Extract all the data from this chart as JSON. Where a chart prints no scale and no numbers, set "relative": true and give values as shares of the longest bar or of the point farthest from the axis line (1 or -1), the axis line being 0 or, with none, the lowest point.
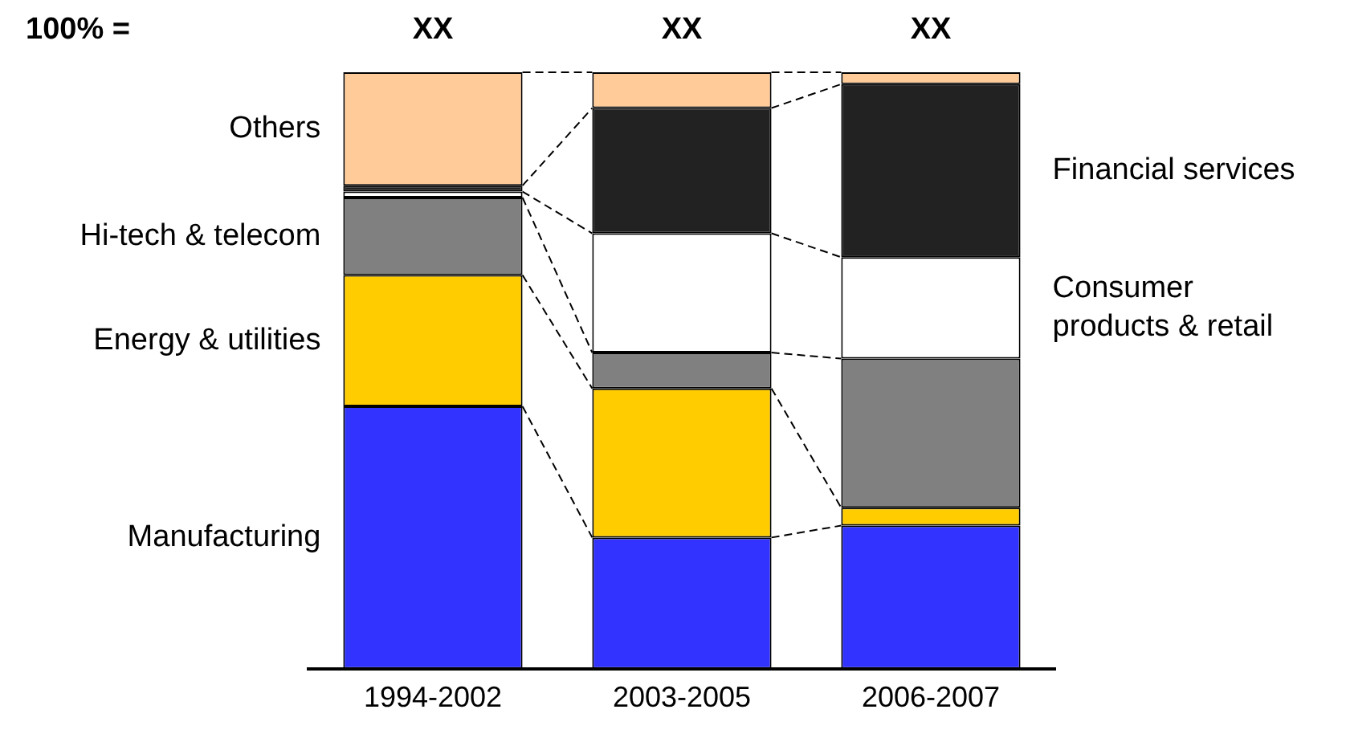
{
  "chart_data": {
    "type": "bar",
    "stacked": true,
    "relative": true,
    "categories": [
      "1994-2002",
      "2003-2005",
      "2006-2007"
    ],
    "series": [
      {
        "name": "Manufacturing",
        "color": "#3333ff",
        "values": [
          0.44,
          0.22,
          0.24
        ]
      },
      {
        "name": "Energy & utilities",
        "color": "#ffcc00",
        "values": [
          0.22,
          0.25,
          0.03
        ]
      },
      {
        "name": "Hi-tech & telecom",
        "color": "#808080",
        "values": [
          0.13,
          0.06,
          0.25
        ]
      },
      {
        "name": "Consumer products & retail",
        "color": "#ffffff",
        "values": [
          0.01,
          0.2,
          0.17
        ]
      },
      {
        "name": "Financial services",
        "color": "#222222",
        "values": [
          0.01,
          0.21,
          0.29
        ]
      },
      {
        "name": "Others",
        "color": "#ffcc99",
        "values": [
          0.19,
          0.06,
          0.02
        ]
      }
    ],
    "totals": [
      "XX",
      "XX",
      "XX"
    ],
    "annotations": [
      "100% ="
    ],
    "grid": false,
    "legend": false
  }
}
